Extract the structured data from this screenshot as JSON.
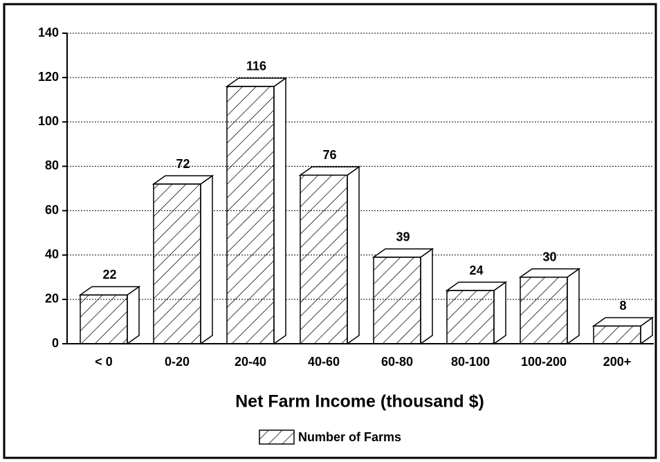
{
  "chart_data": {
    "type": "bar3d",
    "x_label": "Net Farm Income  (thousand $)",
    "categories": [
      "< 0",
      "0-20",
      "20-40",
      "40-60",
      "60-80",
      "80-100",
      "100-200",
      "200+"
    ],
    "series": [
      {
        "name": "Number of Farms",
        "color": "#000000",
        "values": [
          22,
          72,
          116,
          76,
          39,
          24,
          30,
          8
        ]
      }
    ],
    "ylim": [
      0,
      140
    ],
    "yticks": [
      0,
      20,
      40,
      60,
      80,
      100,
      120,
      140
    ],
    "grid": true,
    "legend": "bottom"
  }
}
